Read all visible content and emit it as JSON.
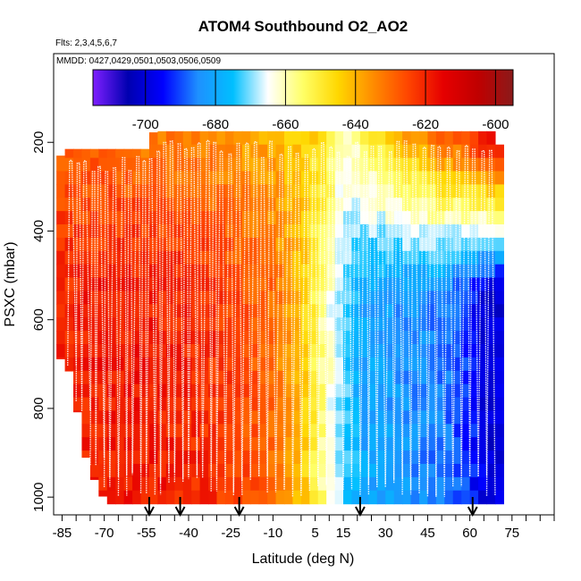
{
  "chart_data": {
    "type": "heatmap",
    "title": "ATOM4 Southbound O2_AO2",
    "subtitle_flights": "Flts: 2,3,4,5,6,7",
    "subtitle_dates": "MMDD: 0427,0429,0501,0503,0506,0509",
    "xlabel": "Latitude (deg N)",
    "ylabel": "PSXC (mbar)",
    "xlim": [
      -88,
      90
    ],
    "ylim": [
      1040,
      0
    ],
    "x_major_ticks": [
      -85,
      -70,
      -55,
      -40,
      -25,
      -10,
      5,
      15,
      30,
      45,
      60,
      75
    ],
    "x_minor_ticks": [
      -80,
      -75,
      -65,
      -60,
      -50,
      -45,
      -35,
      -30,
      -20,
      -15,
      0,
      10,
      20,
      25,
      35,
      40,
      50,
      55,
      65,
      70,
      80,
      85,
      90
    ],
    "y_ticks": [
      200,
      400,
      600,
      800,
      1000
    ],
    "colorbar": {
      "min": -715,
      "max": -595,
      "tick_values": [
        -700,
        -680,
        -660,
        -640,
        -620,
        -600
      ],
      "tick_labels": [
        "-700",
        "-680",
        "-660",
        "-640",
        "-620",
        "-600"
      ]
    },
    "colormap": [
      "#7f1fff",
      "#0000b0",
      "#0000ff",
      "#1e90ff",
      "#00bfff",
      "#ffffff",
      "#ffff66",
      "#ffd700",
      "#ff8c00",
      "#ff4500",
      "#e60000",
      "#c00000",
      "#8b1a1a"
    ],
    "profile_line_color": "#ffffff",
    "profile_latitudes": [
      -83,
      -80,
      -78,
      -75,
      -73,
      -70,
      -68,
      -65,
      -62,
      -60,
      -57,
      -55,
      -52,
      -50,
      -47,
      -45,
      -42,
      -40,
      -37,
      -35,
      -32,
      -30,
      -27,
      -24,
      -21,
      -18,
      -15,
      -12,
      -9,
      -6,
      -3,
      0,
      3,
      6,
      9,
      12,
      15,
      18,
      21,
      24,
      27,
      30,
      33,
      36,
      39,
      42,
      45,
      48,
      51,
      54,
      57,
      60,
      63,
      66,
      69
    ],
    "marker_latitudes": [
      -54,
      -43,
      -22,
      21,
      61
    ],
    "bins_latitude": [
      -87,
      -84,
      -81,
      -78,
      -75,
      -72,
      -69,
      -66,
      -63,
      -60,
      -57,
      -54,
      -51,
      -48,
      -45,
      -42,
      -39,
      -36,
      -33,
      -30,
      -27,
      -24,
      -21,
      -18,
      -15,
      -12,
      -9,
      -6,
      -3,
      0,
      3,
      6,
      9,
      12,
      15,
      18,
      21,
      24,
      27,
      30,
      33,
      36,
      39,
      42,
      45,
      48,
      51,
      54,
      57,
      60,
      63,
      66,
      69,
      72
    ],
    "anchors_lat": [
      -87,
      -60,
      -30,
      -10,
      0,
      5,
      10,
      15,
      22,
      35,
      50,
      60,
      66,
      72
    ],
    "anchors_value": [
      -621,
      -618,
      -622,
      -630,
      -642,
      -652,
      -662,
      -672,
      -680,
      -683,
      -686,
      -692,
      -700,
      -700
    ],
    "upper_anchors_value": [
      -628,
      -632,
      -636,
      -640,
      -644,
      -646,
      -650,
      -660,
      -655,
      -640,
      -628,
      -622,
      -612,
      -608
    ],
    "pressure_bins": [
      175,
      205,
      235,
      265,
      295,
      325,
      355,
      385,
      415,
      445,
      475,
      505,
      535,
      565,
      595,
      625,
      655,
      685,
      715,
      745,
      775,
      805,
      835,
      865,
      895,
      925,
      955,
      985,
      1015
    ],
    "top_edge_by_latitude": [
      {
        "lat": -88,
        "p": 255
      },
      {
        "lat": -84,
        "p": 215
      },
      {
        "lat": -55,
        "p": 215
      },
      {
        "lat": -52,
        "p": 170
      },
      {
        "lat": 69,
        "p": 170
      },
      {
        "lat": 72,
        "p": 240
      }
    ],
    "bottom_edge_by_latitude": [
      {
        "lat": -88,
        "p": 665
      },
      {
        "lat": -82,
        "p": 720
      },
      {
        "lat": -78,
        "p": 860
      },
      {
        "lat": -75,
        "p": 960
      },
      {
        "lat": -71,
        "p": 960
      },
      {
        "lat": -70,
        "p": 1035
      },
      {
        "lat": 72,
        "p": 1035
      }
    ]
  }
}
